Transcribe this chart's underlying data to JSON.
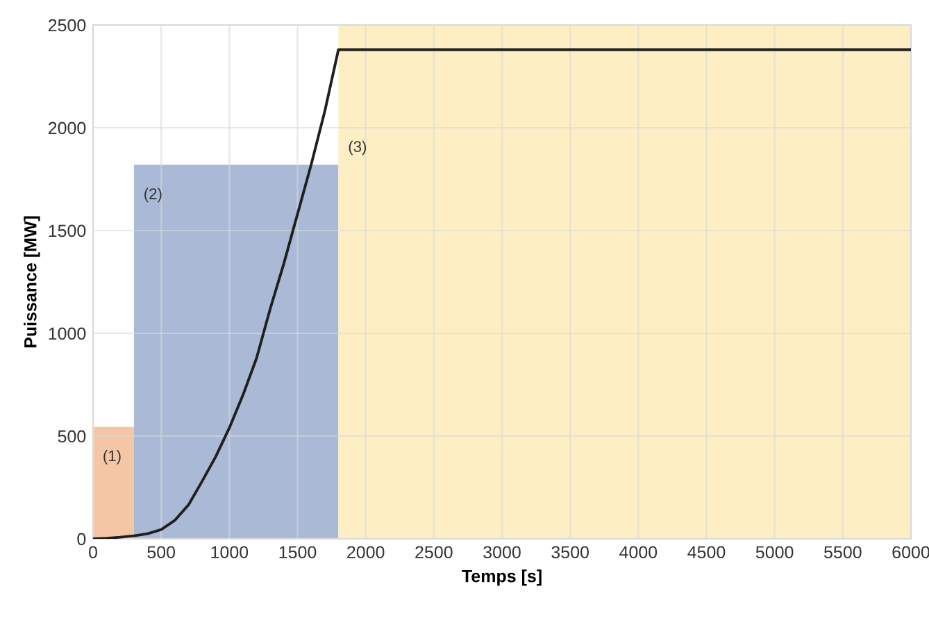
{
  "chart_data": {
    "type": "line",
    "xlabel": "Temps [s]",
    "ylabel": "Puissance [MW]",
    "xlim": [
      0,
      6000
    ],
    "xticks": [
      0,
      500,
      1000,
      1500,
      2000,
      2500,
      3000,
      3500,
      4000,
      4500,
      5000,
      5500,
      6000
    ],
    "ylim": [
      0,
      2500
    ],
    "yticks": [
      0,
      500,
      1000,
      1500,
      2000,
      2500
    ],
    "grid": true,
    "marker": "none",
    "line_style": "solid",
    "series": [
      {
        "type": "area",
        "color": "#f5c6a6",
        "x": [
          0,
          300
        ],
        "values": [
          545,
          545
        ]
      },
      {
        "type": "area",
        "color": "#a9b9d6",
        "x": [
          300,
          1800
        ],
        "values": [
          1820,
          1820
        ]
      },
      {
        "type": "area",
        "color": "#fdefc3",
        "x": [
          1800,
          6000
        ],
        "values": [
          2500,
          2500
        ]
      },
      {
        "color": "#1f1f1f",
        "x": [
          0,
          100,
          200,
          300,
          400,
          500,
          600,
          700,
          800,
          900,
          1000,
          1100,
          1200,
          1300,
          1400,
          1500,
          1600,
          1700,
          1800,
          6000
        ],
        "values": [
          0,
          3,
          8,
          15,
          25,
          45,
          90,
          165,
          280,
          400,
          540,
          700,
          880,
          1120,
          1340,
          1580,
          1820,
          2080,
          2380,
          2380
        ]
      }
    ],
    "annotations": [
      "(1)",
      "(2)",
      "(3)"
    ]
  }
}
